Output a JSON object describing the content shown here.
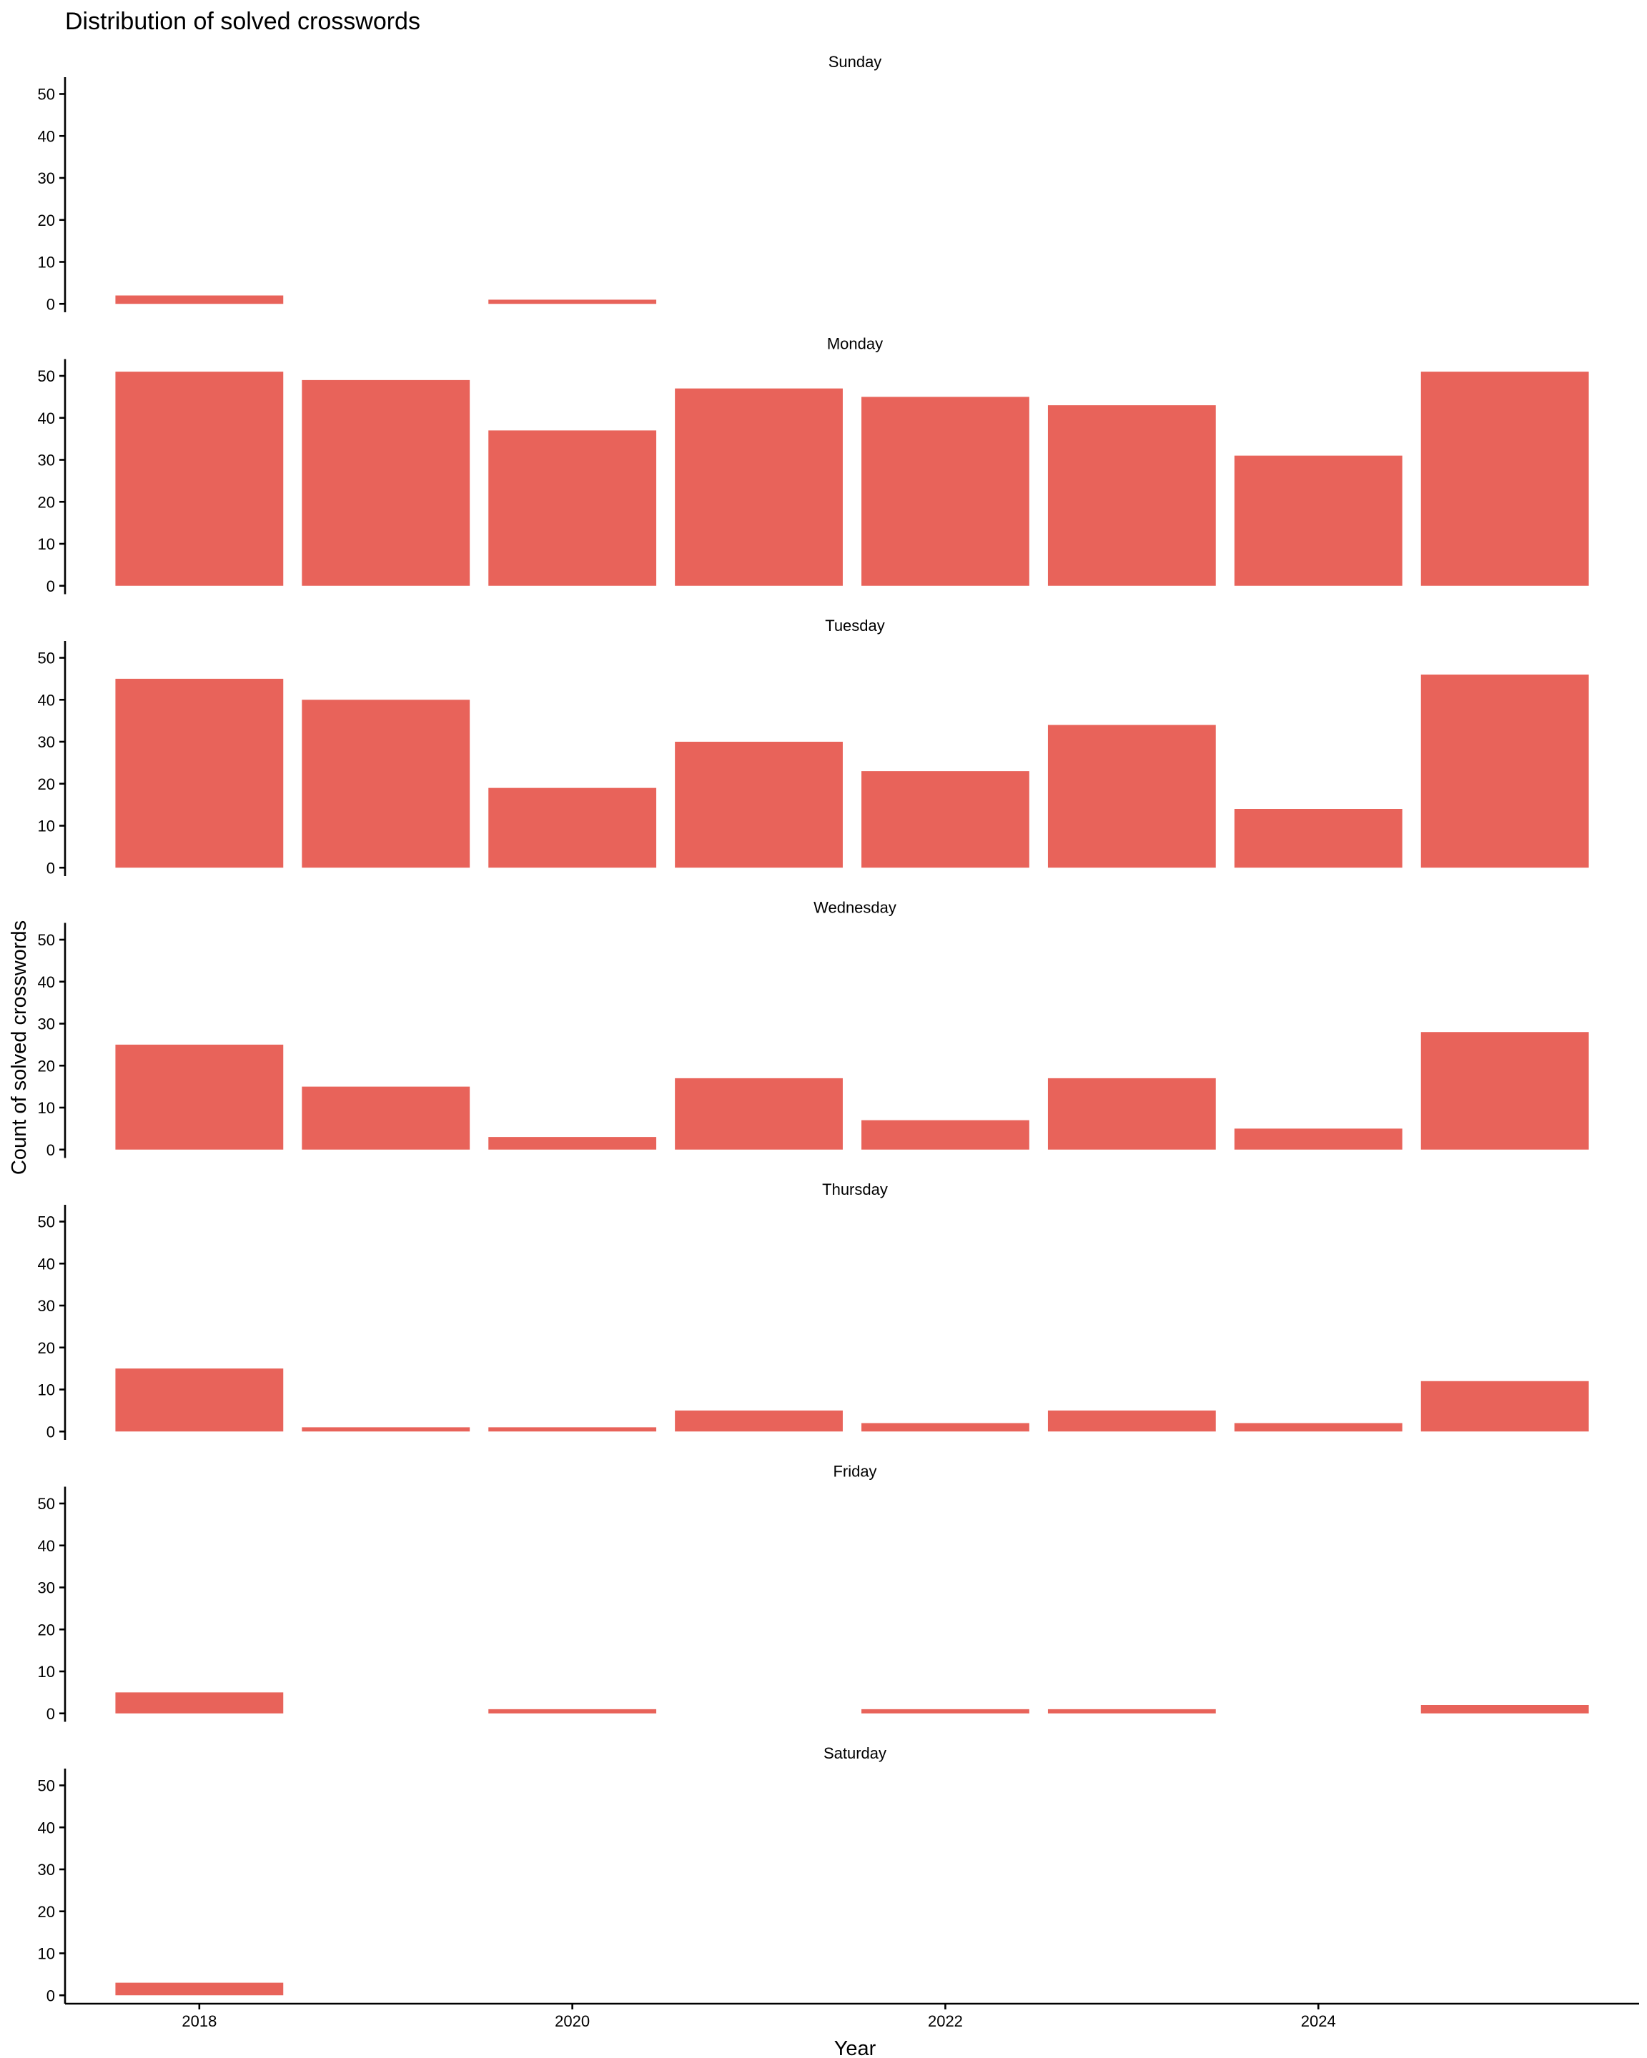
{
  "chart_data": {
    "type": "bar",
    "title": "Distribution of solved crosswords",
    "xlabel": "Year",
    "ylabel": "Count of solved crosswords",
    "x": [
      2018,
      2019,
      2020,
      2021,
      2022,
      2023,
      2024,
      2025
    ],
    "x_ticks": [
      2018,
      2020,
      2022,
      2024
    ],
    "y_ticks": [
      0,
      10,
      20,
      30,
      40,
      50
    ],
    "ylim": [
      -2,
      54
    ],
    "bar_color": "#e8635a",
    "grid": false,
    "legend": "none",
    "facets": [
      {
        "name": "Sunday",
        "values": [
          2,
          0,
          1,
          0,
          0,
          0,
          0,
          0
        ]
      },
      {
        "name": "Monday",
        "values": [
          51,
          49,
          37,
          47,
          45,
          43,
          31,
          51
        ]
      },
      {
        "name": "Tuesday",
        "values": [
          45,
          40,
          19,
          30,
          23,
          34,
          14,
          46
        ]
      },
      {
        "name": "Wednesday",
        "values": [
          25,
          15,
          3,
          17,
          7,
          17,
          5,
          28
        ]
      },
      {
        "name": "Thursday",
        "values": [
          15,
          1,
          1,
          5,
          2,
          5,
          2,
          12
        ]
      },
      {
        "name": "Friday",
        "values": [
          5,
          0,
          1,
          0,
          1,
          1,
          0,
          2
        ]
      },
      {
        "name": "Saturday",
        "values": [
          3,
          0,
          0,
          0,
          0,
          0,
          0,
          0
        ]
      }
    ]
  }
}
